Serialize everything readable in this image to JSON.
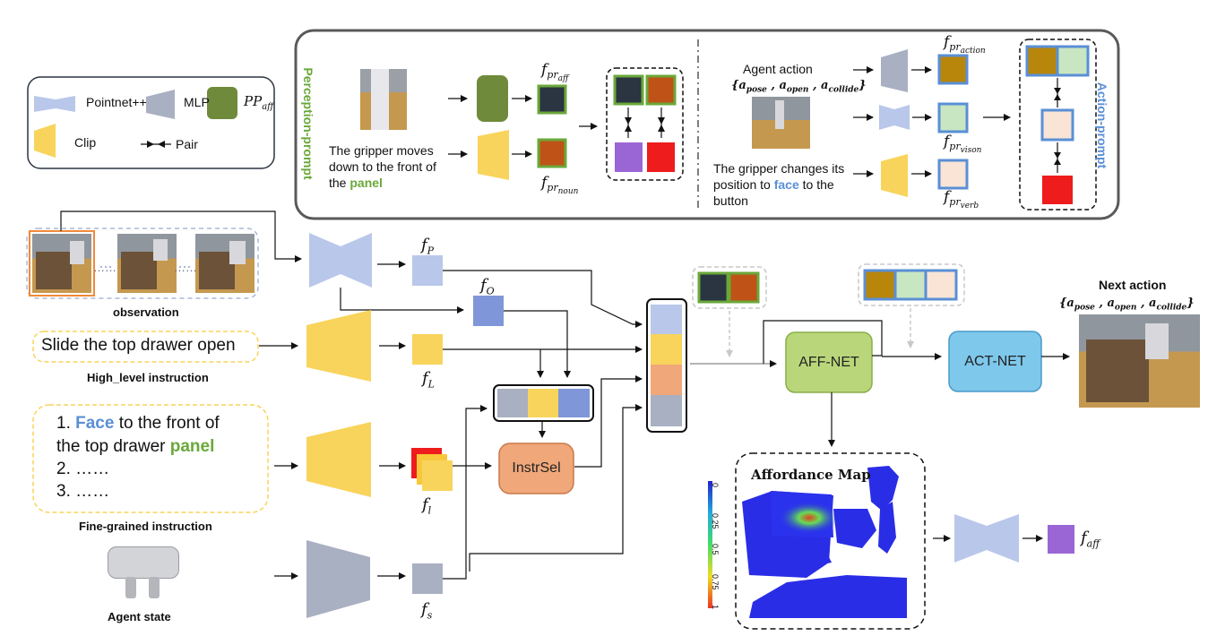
{
  "legend": {
    "pointnet_label": "Pointnet++",
    "mlp_label": "MLP",
    "ppaff_label": "PP",
    "ppaff_sub": "aff",
    "clip_label": "Clip",
    "pair_label": "Pair"
  },
  "perception": {
    "side_title": "Perception-prompt",
    "caption_line1": "The gripper moves",
    "caption_line2": "down to the front of",
    "caption_line3_pre": "the ",
    "caption_line3_hl": "panel",
    "f_aff": "f",
    "f_aff_sub": "pr",
    "f_aff_subsub": "aff",
    "f_noun": "f",
    "f_noun_sub": "pr",
    "f_noun_subsub": "noun"
  },
  "action_prompt": {
    "side_title": "Action-prompt",
    "agent_action": "Agent action",
    "agent_set": "{a",
    "pose": "pose",
    "open": "open",
    "collide": "collide",
    "caption_line1": "The gripper changes its",
    "caption_line2_pre": "position to ",
    "caption_line2_hl": "face",
    "caption_line2_post": " to the",
    "caption_line3": "button",
    "f_action_sub": "pr",
    "f_action_subsub": "action",
    "f_vison_sub": "pr",
    "f_vison_subsub": "vison",
    "f_verb_sub": "pr",
    "f_verb_subsub": "verb"
  },
  "inputs": {
    "observation_label": "observation",
    "high_level_text": "Slide the top drawer open",
    "high_level_label": "High_level instruction",
    "fine_line1_num": "1. ",
    "fine_line1_hl": "Face",
    "fine_line1_post": " to the front of",
    "fine_line2_pre": "the top drawer ",
    "fine_line2_hl": "panel",
    "fine_line3": "2. ……",
    "fine_line4": "3. ……",
    "fine_label": "Fine-grained instruction",
    "agent_state_label": "Agent state",
    "dots": "……"
  },
  "features": {
    "fP": "f",
    "fP_sub": "P",
    "fO": "f",
    "fO_sub": "O",
    "fL": "f",
    "fL_sub": "L",
    "fl": "f",
    "fl_sub": "l",
    "fs": "f",
    "fs_sub": "s",
    "faff": "f",
    "faff_sub": "aff"
  },
  "modules": {
    "instrsel": "InstrSel",
    "aff_net": "AFF-NET",
    "act_net": "ACT-NET"
  },
  "output": {
    "next_action": "Next action",
    "next_set": "{a",
    "pose": "pose",
    "open": "open",
    "collide": "collide"
  },
  "affordance": {
    "title": "Affordance Map",
    "ticks": [
      "0",
      "0.25",
      "0.5",
      "0.75",
      "1"
    ]
  },
  "colors": {
    "pointnet": "#b9c7ea",
    "mlp": "#a9b0c2",
    "clip": "#f8d45c",
    "ppaff": "#6f8a3a",
    "navy": "#2b3441",
    "rust": "#bf5317",
    "purple": "#9a66d6",
    "red": "#ee1c1c",
    "gold": "#b8860b",
    "mint": "#c8e6c2",
    "peach": "#f9e4d6",
    "green_hl": "#6aa83a",
    "blue_hl": "#5a8fd6",
    "aff_net": "#b9d77a",
    "act_net": "#7ec8ec",
    "instrsel": "#f0a77a"
  }
}
